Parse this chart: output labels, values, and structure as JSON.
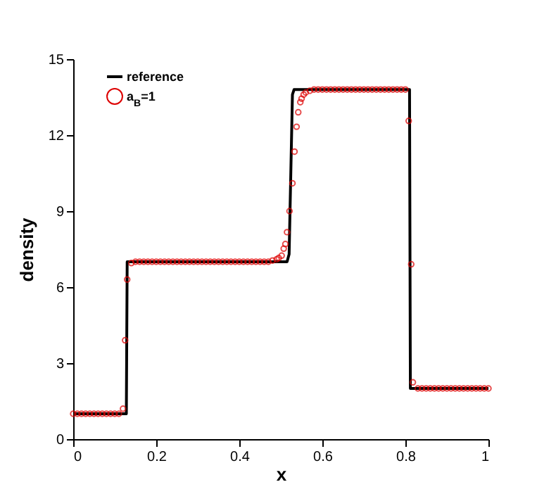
{
  "chart_data": {
    "type": "line",
    "xlabel": "x",
    "ylabel": "density",
    "xlim": [
      0,
      1
    ],
    "ylim": [
      0,
      15
    ],
    "xticks": [
      0,
      0.2,
      0.4,
      0.6,
      0.8,
      1
    ],
    "yticks": [
      0,
      3,
      6,
      9,
      12,
      15
    ],
    "grid": false,
    "legend": "top left",
    "series": [
      {
        "name": "reference",
        "type": "line",
        "color": "#000000",
        "line_style": "solid",
        "marker": "none",
        "x": [
          0,
          0.128,
          0.13,
          0.515,
          0.52,
          0.528,
          0.532,
          0.81,
          0.812,
          1
        ],
        "values": [
          1,
          1,
          7,
          7,
          7.3,
          13.6,
          13.8,
          13.8,
          2,
          2
        ]
      },
      {
        "name": "a$_{B}$=1",
        "type": "scatter",
        "color": "#dd0000",
        "marker": "circle",
        "x": [
          0,
          0.01,
          0.02,
          0.03,
          0.04,
          0.05,
          0.06,
          0.07,
          0.08,
          0.09,
          0.1,
          0.11,
          0.12,
          0.125,
          0.13,
          0.14,
          0.15,
          0.16,
          0.17,
          0.18,
          0.19,
          0.2,
          0.21,
          0.22,
          0.23,
          0.24,
          0.25,
          0.26,
          0.27,
          0.28,
          0.29,
          0.3,
          0.31,
          0.32,
          0.33,
          0.34,
          0.35,
          0.36,
          0.37,
          0.38,
          0.39,
          0.4,
          0.41,
          0.42,
          0.43,
          0.44,
          0.45,
          0.46,
          0.47,
          0.48,
          0.49,
          0.495,
          0.502,
          0.507,
          0.511,
          0.515,
          0.521,
          0.528,
          0.533,
          0.538,
          0.542,
          0.547,
          0.55,
          0.555,
          0.56,
          0.57,
          0.58,
          0.59,
          0.6,
          0.61,
          0.62,
          0.63,
          0.64,
          0.65,
          0.66,
          0.67,
          0.68,
          0.69,
          0.7,
          0.71,
          0.72,
          0.73,
          0.74,
          0.75,
          0.76,
          0.77,
          0.78,
          0.79,
          0.8,
          0.808,
          0.814,
          0.818,
          0.83,
          0.84,
          0.85,
          0.86,
          0.87,
          0.88,
          0.89,
          0.9,
          0.91,
          0.92,
          0.93,
          0.94,
          0.95,
          0.96,
          0.97,
          0.98,
          0.99,
          1
        ],
        "values": [
          1,
          1,
          1,
          1,
          1,
          1,
          1,
          1,
          1,
          1,
          1,
          1,
          1.2,
          3.9,
          6.3,
          6.95,
          7,
          7,
          7,
          7,
          7,
          7,
          7,
          7,
          7,
          7,
          7,
          7,
          7,
          7,
          7,
          7,
          7,
          7,
          7,
          7,
          7,
          7,
          7,
          7,
          7,
          7,
          7,
          7,
          7,
          7,
          7,
          7,
          7,
          7.05,
          7.1,
          7.15,
          7.24,
          7.52,
          7.7,
          8.17,
          9,
          10.1,
          11.35,
          12.33,
          12.9,
          13.3,
          13.44,
          13.6,
          13.68,
          13.75,
          13.8,
          13.8,
          13.8,
          13.8,
          13.8,
          13.8,
          13.8,
          13.8,
          13.8,
          13.8,
          13.8,
          13.8,
          13.8,
          13.8,
          13.8,
          13.8,
          13.8,
          13.8,
          13.8,
          13.8,
          13.8,
          13.8,
          13.8,
          12.56,
          6.9,
          2.24,
          2,
          2,
          2,
          2,
          2,
          2,
          2,
          2,
          2,
          2,
          2,
          2,
          2,
          2,
          2,
          2,
          2,
          2
        ]
      }
    ]
  }
}
